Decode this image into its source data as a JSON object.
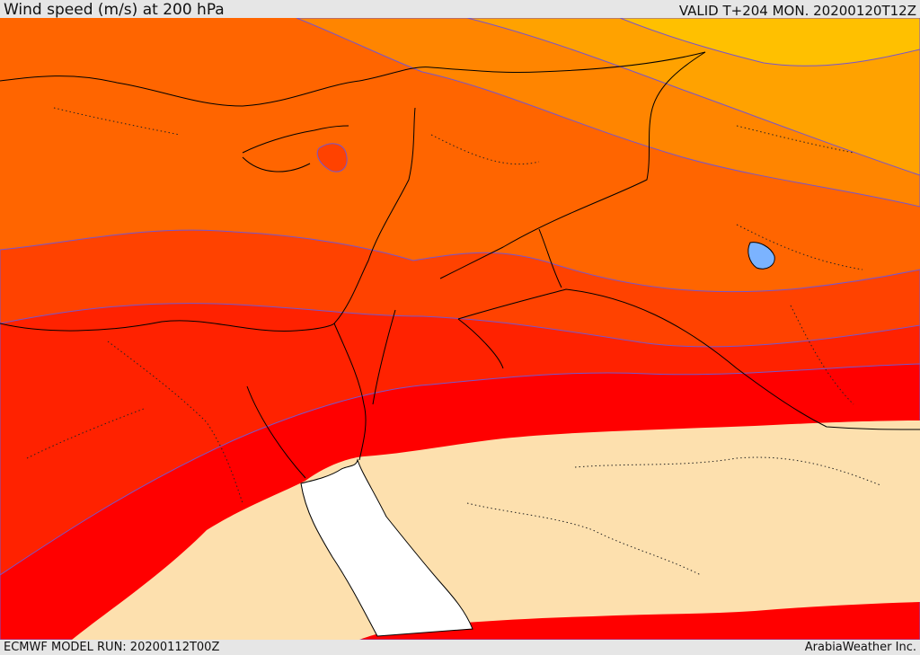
{
  "header": {
    "title": "Wind speed (m/s) at 200 hPa",
    "valid": "VALID T+204 MON. 20200120T12Z"
  },
  "footer": {
    "model_run": "ECMWF MODEL RUN: 20200112T00Z",
    "credit": "ArabiaWeather Inc."
  },
  "map": {
    "variable": "wind speed",
    "level": "200 hPa",
    "colors": {
      "band_yellow": "#ffc000",
      "band_light_orange": "#ffa200",
      "band_orange": "#ff8500",
      "band_dark_orange": "#ff6500",
      "band_red_orange": "#ff4200",
      "band_scarlet": "#ff2200",
      "band_red": "#ff0000",
      "low_speed_fill": "#fde0ae",
      "sea_mask": "#ffffff",
      "contour_line": "#7755cc",
      "coastline": "#000000"
    }
  }
}
